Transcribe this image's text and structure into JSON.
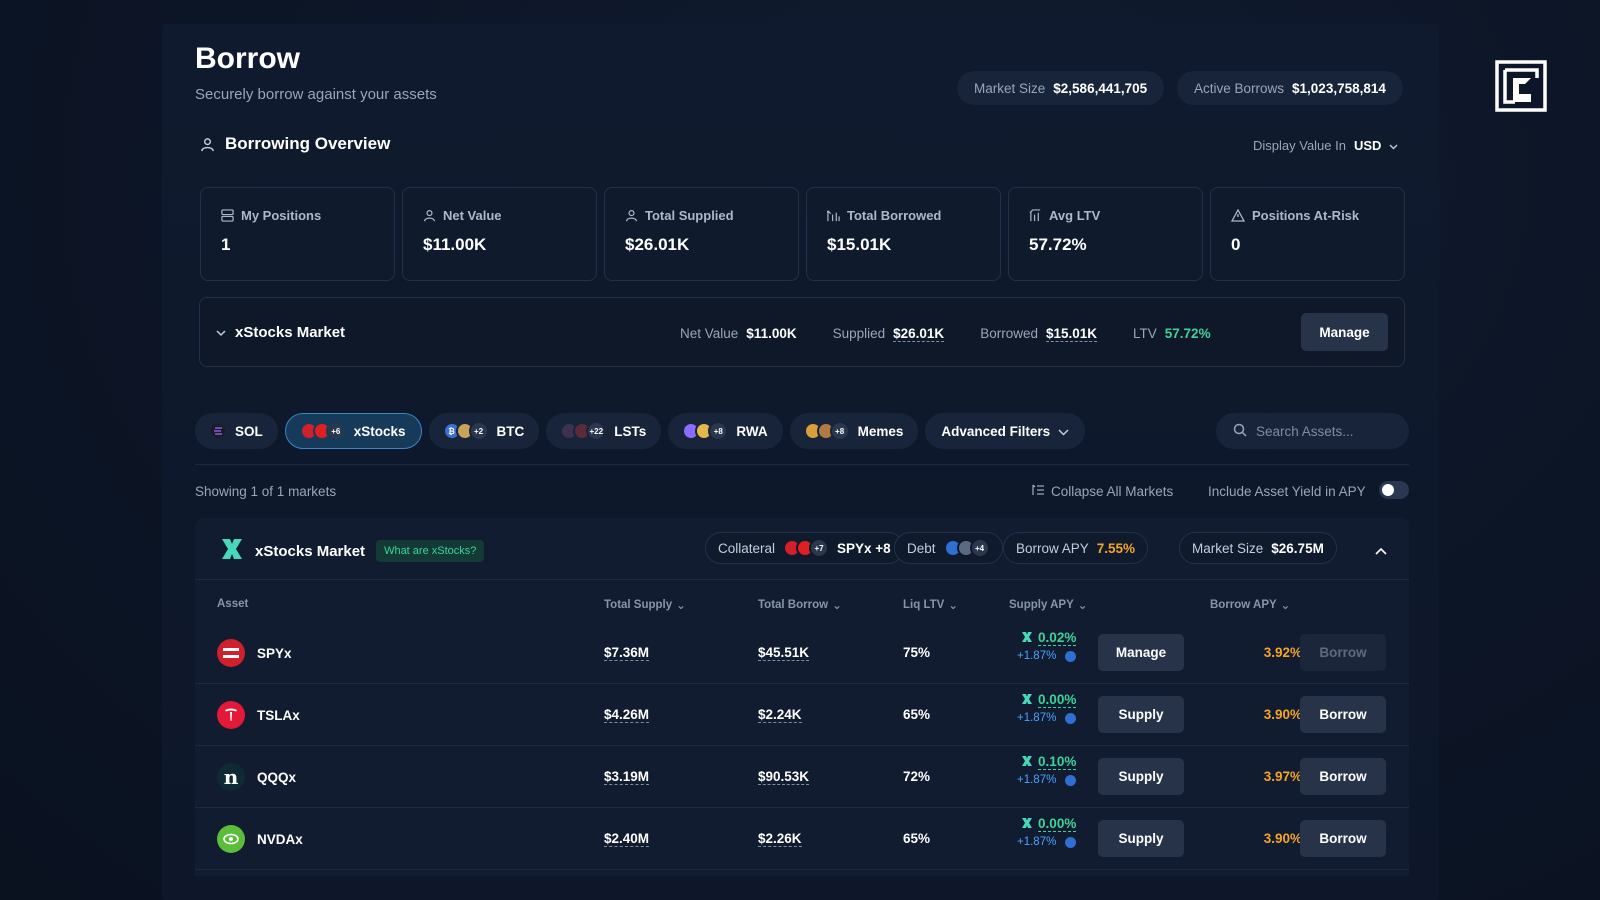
{
  "header": {
    "title": "Borrow",
    "subtitle": "Securely borrow against your assets",
    "market_size_label": "Market Size",
    "market_size_value": "$2,586,441,705",
    "active_borrows_label": "Active Borrows",
    "active_borrows_value": "$1,023,758,814"
  },
  "overview": {
    "title": "Borrowing Overview",
    "display_label": "Display Value In",
    "currency": "USD",
    "cards": [
      {
        "label": "My Positions",
        "value": "1",
        "icon": "stack-icon"
      },
      {
        "label": "Net Value",
        "value": "$11.00K",
        "icon": "user-icon"
      },
      {
        "label": "Total Supplied",
        "value": "$26.01K",
        "icon": "user-icon"
      },
      {
        "label": "Total Borrowed",
        "value": "$15.01K",
        "icon": "chart-icon"
      },
      {
        "label": "Avg LTV",
        "value": "57.72%",
        "icon": "chart-icon"
      },
      {
        "label": "Positions At-Risk",
        "value": "0",
        "icon": "warning-icon"
      }
    ]
  },
  "position": {
    "name": "xStocks Market",
    "net_value_label": "Net Value",
    "net_value": "$11.00K",
    "supplied_label": "Supplied",
    "supplied": "$26.01K",
    "borrowed_label": "Borrowed",
    "borrowed": "$15.01K",
    "ltv_label": "LTV",
    "ltv": "57.72%",
    "manage_label": "Manage"
  },
  "filters": {
    "chips": [
      {
        "label": "SOL",
        "more": ""
      },
      {
        "label": "xStocks",
        "more": "+6"
      },
      {
        "label": "BTC",
        "more": "+2"
      },
      {
        "label": "LSTs",
        "more": "+22"
      },
      {
        "label": "RWA",
        "more": "+8"
      },
      {
        "label": "Memes",
        "more": "+8"
      }
    ],
    "advanced_label": "Advanced Filters",
    "search_placeholder": "Search Assets..."
  },
  "list": {
    "showing": "Showing 1 of 1 markets",
    "collapse_label": "Collapse All Markets",
    "include_label": "Include Asset Yield in APY",
    "include_enabled": false
  },
  "market": {
    "name": "xStocks Market",
    "badge": "What are xStocks?",
    "collateral_label": "Collateral",
    "collateral_more": "+7",
    "collateral_value": "SPYx +8",
    "debt_label": "Debt",
    "debt_more": "+4",
    "borrow_apy_label": "Borrow APY",
    "borrow_apy": "7.55%",
    "market_size_label": "Market Size",
    "market_size": "$26.75M"
  },
  "table": {
    "columns": [
      "Asset",
      "Total Supply",
      "Total Borrow",
      "Liq LTV",
      "Supply APY",
      "Borrow APY"
    ],
    "rows": [
      {
        "asset": "SPYx",
        "supply": "$7.36M",
        "borrow": "$45.51K",
        "ltv": "75%",
        "supply_apy": "0.02%",
        "asset_yield": "+1.87%",
        "action": "Manage",
        "borrow_apy": "3.92%",
        "borrow_btn": "Borrow",
        "borrow_disabled": true
      },
      {
        "asset": "TSLAx",
        "supply": "$4.26M",
        "borrow": "$2.24K",
        "ltv": "65%",
        "supply_apy": "0.00%",
        "asset_yield": "+1.87%",
        "action": "Supply",
        "borrow_apy": "3.90%",
        "borrow_btn": "Borrow",
        "borrow_disabled": false
      },
      {
        "asset": "QQQx",
        "supply": "$3.19M",
        "borrow": "$90.53K",
        "ltv": "72%",
        "supply_apy": "0.10%",
        "asset_yield": "+1.87%",
        "action": "Supply",
        "borrow_apy": "3.97%",
        "borrow_btn": "Borrow",
        "borrow_disabled": false
      },
      {
        "asset": "NVDAx",
        "supply": "$2.40M",
        "borrow": "$2.26K",
        "ltv": "65%",
        "supply_apy": "0.00%",
        "asset_yield": "+1.87%",
        "action": "Supply",
        "borrow_apy": "3.90%",
        "borrow_btn": "Borrow",
        "borrow_disabled": false
      }
    ]
  },
  "colors": {
    "background": "#0b1322",
    "accent_green": "#3fd39a",
    "accent_orange": "#f5a524",
    "accent_blue": "#3c84c6"
  }
}
